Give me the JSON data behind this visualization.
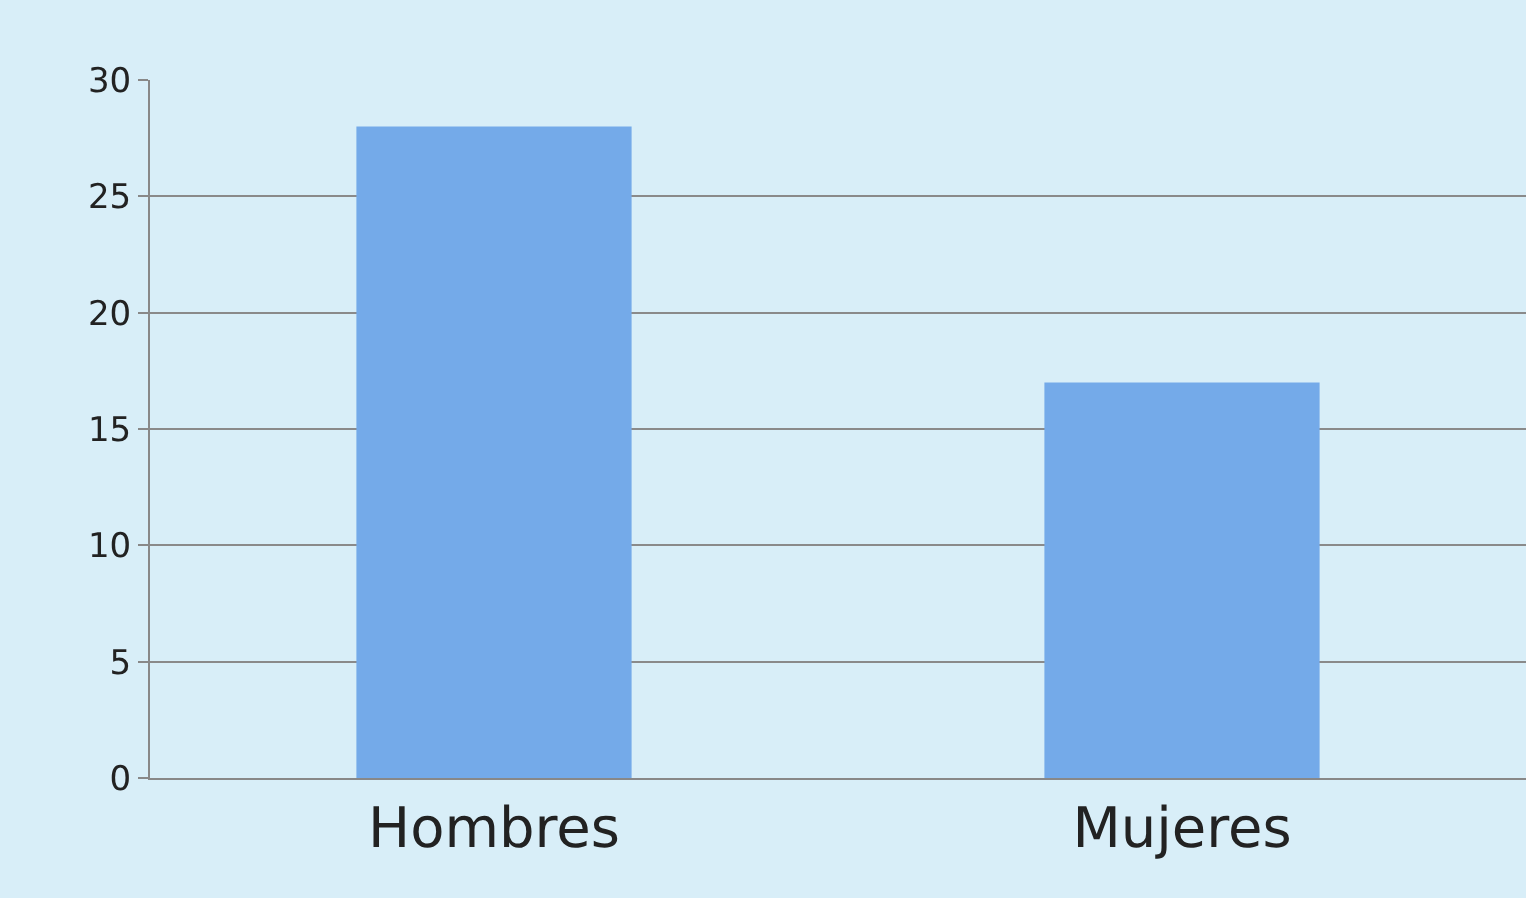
{
  "chart_data": {
    "type": "bar",
    "categories": [
      "Hombres",
      "Mujeres"
    ],
    "values": [
      28,
      17
    ],
    "color": "#74aae9",
    "ylim": [
      0,
      30
    ],
    "yticks": [
      0,
      5,
      10,
      15,
      20,
      25,
      30
    ],
    "grid": "y"
  }
}
